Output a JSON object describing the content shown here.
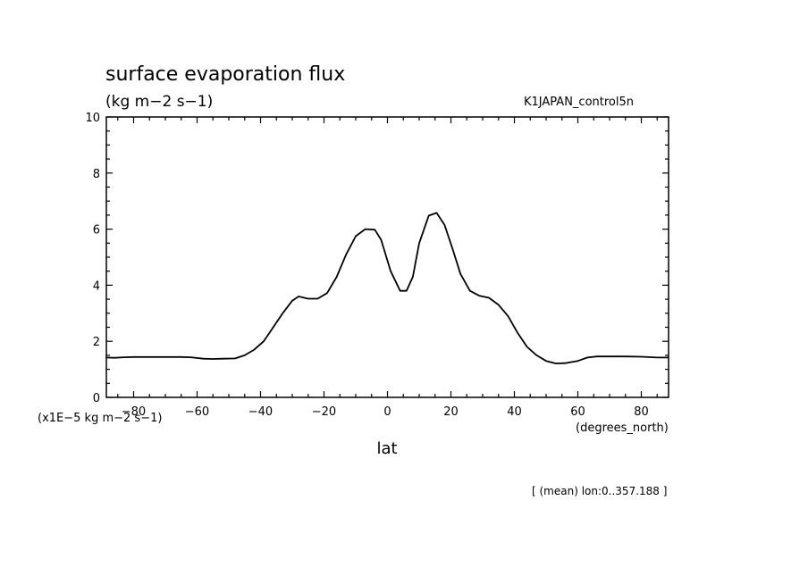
{
  "chart_data": {
    "type": "line",
    "title": "surface evaporation flux",
    "units_label": "(kg m−2 s−1)",
    "run_label": "K1JAPAN_control5n",
    "scale_label": "(x1E−5 kg m−2 s−1)",
    "xlabel": "lat",
    "x_units_label": "(degrees_north)",
    "footnote": "[ (mean) lon:0..357.188 ]",
    "xlim": [
      -88.59,
      88.59
    ],
    "ylim": [
      0,
      10
    ],
    "xticks": [
      -80,
      -60,
      -40,
      -20,
      0,
      20,
      40,
      60,
      80
    ],
    "xtick_labels": [
      "−80",
      "−60",
      "−40",
      "−20",
      "0",
      "20",
      "40",
      "60",
      "80"
    ],
    "yticks": [
      0,
      2,
      4,
      6,
      8,
      10
    ],
    "ytick_labels": [
      "0",
      "2",
      "4",
      "6",
      "8",
      "10"
    ],
    "line_color": "#000000",
    "series": [
      {
        "x": [
          -88.6,
          -86,
          -83,
          -80,
          -75,
          -70,
          -65,
          -62,
          -58,
          -55,
          -52,
          -48,
          -45,
          -42,
          -39,
          -36,
          -33,
          -30,
          -28,
          -25,
          -22,
          -19,
          -16,
          -13,
          -10,
          -7,
          -4,
          -2,
          1,
          4,
          6,
          8,
          10,
          13,
          15.5,
          18,
          20.5,
          23,
          26,
          29,
          32,
          35,
          38,
          41,
          44,
          47,
          50,
          53,
          56,
          60,
          63,
          66,
          70,
          75,
          80,
          85,
          88.6
        ],
        "y": [
          1.42,
          1.41,
          1.43,
          1.44,
          1.44,
          1.44,
          1.44,
          1.43,
          1.38,
          1.37,
          1.38,
          1.39,
          1.5,
          1.7,
          2.0,
          2.5,
          3.0,
          3.45,
          3.6,
          3.52,
          3.52,
          3.72,
          4.3,
          5.1,
          5.75,
          6.0,
          5.98,
          5.62,
          4.5,
          3.8,
          3.8,
          4.3,
          5.5,
          6.48,
          6.58,
          6.15,
          5.3,
          4.4,
          3.8,
          3.62,
          3.55,
          3.3,
          2.9,
          2.3,
          1.8,
          1.5,
          1.3,
          1.21,
          1.22,
          1.3,
          1.42,
          1.46,
          1.46,
          1.46,
          1.45,
          1.42,
          1.42
        ]
      }
    ]
  }
}
